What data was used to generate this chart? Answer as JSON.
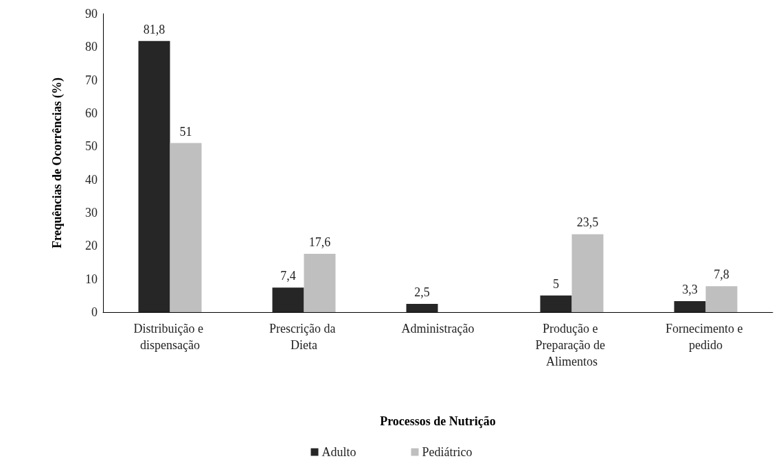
{
  "chart_data": {
    "type": "bar",
    "xlabel": "Processos de Nutrição",
    "ylabel": "Frequências de Ocorrências (%)",
    "categories": [
      "Distribuição e dispensação",
      "Prescrição da Dieta",
      "Administração",
      "Produção e Preparação de Alimentos",
      "Fornecimento e pedido"
    ],
    "series": [
      {
        "name": "Adulto",
        "color": "#262626",
        "values": [
          81.8,
          7.4,
          2.5,
          5,
          3.3
        ],
        "value_labels": [
          "81,8",
          "7,4",
          "2,5",
          "5",
          "3,3"
        ]
      },
      {
        "name": "Pediátrico",
        "color": "#bfbfbf",
        "values": [
          51,
          17.6,
          null,
          23.5,
          7.8
        ],
        "value_labels": [
          "51",
          "17,6",
          null,
          "23,5",
          "7,8"
        ]
      }
    ],
    "ylim": [
      0,
      90
    ],
    "yticks": [
      0,
      10,
      20,
      30,
      40,
      50,
      60,
      70,
      80,
      90
    ],
    "legend": "bottom"
  }
}
